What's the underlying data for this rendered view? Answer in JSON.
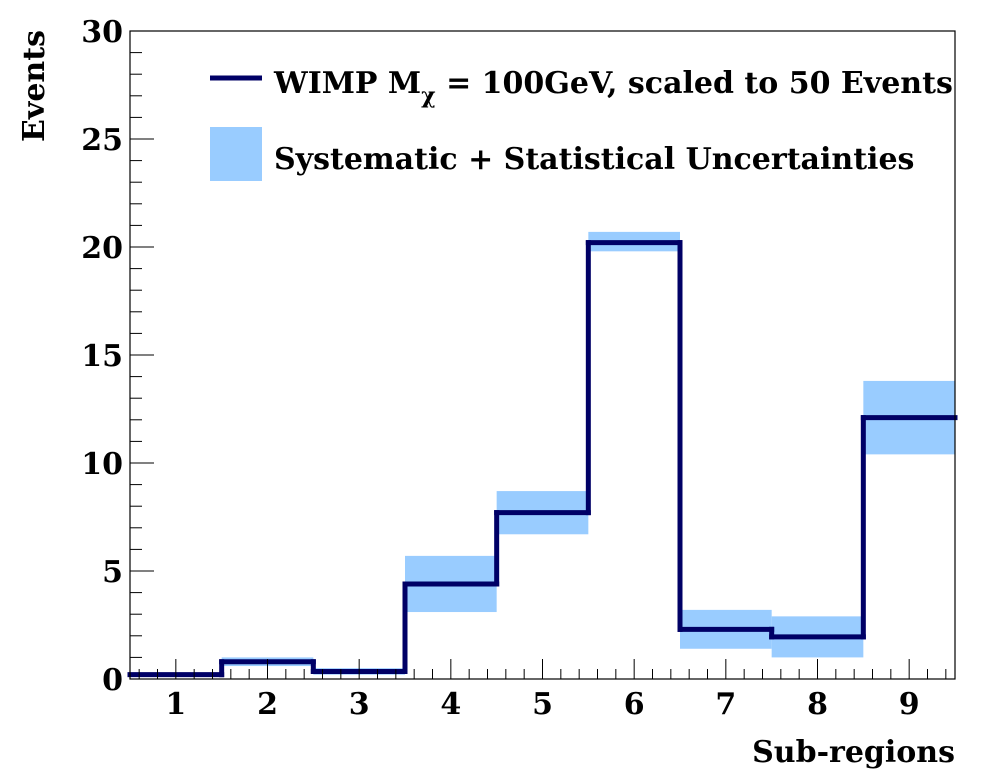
{
  "chart_data": {
    "type": "bar",
    "xlabel": "Sub-regions",
    "ylabel": "Events",
    "xlim": [
      0.5,
      9.5
    ],
    "ylim": [
      0,
      30
    ],
    "x_ticks": [
      "1",
      "2",
      "3",
      "4",
      "5",
      "6",
      "7",
      "8",
      "9"
    ],
    "y_ticks": [
      "0",
      "5",
      "10",
      "15",
      "20",
      "25",
      "30"
    ],
    "grid": false,
    "legend_position": "top",
    "colors": {
      "line": "#000066",
      "band": "#99ccff"
    },
    "series": [
      {
        "name": "WIMP M_χ = 100GeV, scaled to 50 Events",
        "name_main": "WIMP M",
        "name_sub": "χ",
        "name_rest": " = 100GeV, scaled to 50 Events",
        "style": "step",
        "values": [
          0.2,
          0.8,
          0.35,
          4.4,
          7.7,
          20.2,
          2.3,
          1.95,
          12.1
        ]
      },
      {
        "name": "Systematic + Statistical Uncertainties",
        "style": "band",
        "low": [
          0.1,
          0.6,
          0.2,
          3.1,
          6.7,
          19.8,
          1.4,
          1.0,
          10.4
        ],
        "high": [
          0.3,
          1.0,
          0.5,
          5.7,
          8.7,
          20.7,
          3.2,
          2.9,
          13.8
        ]
      }
    ]
  }
}
